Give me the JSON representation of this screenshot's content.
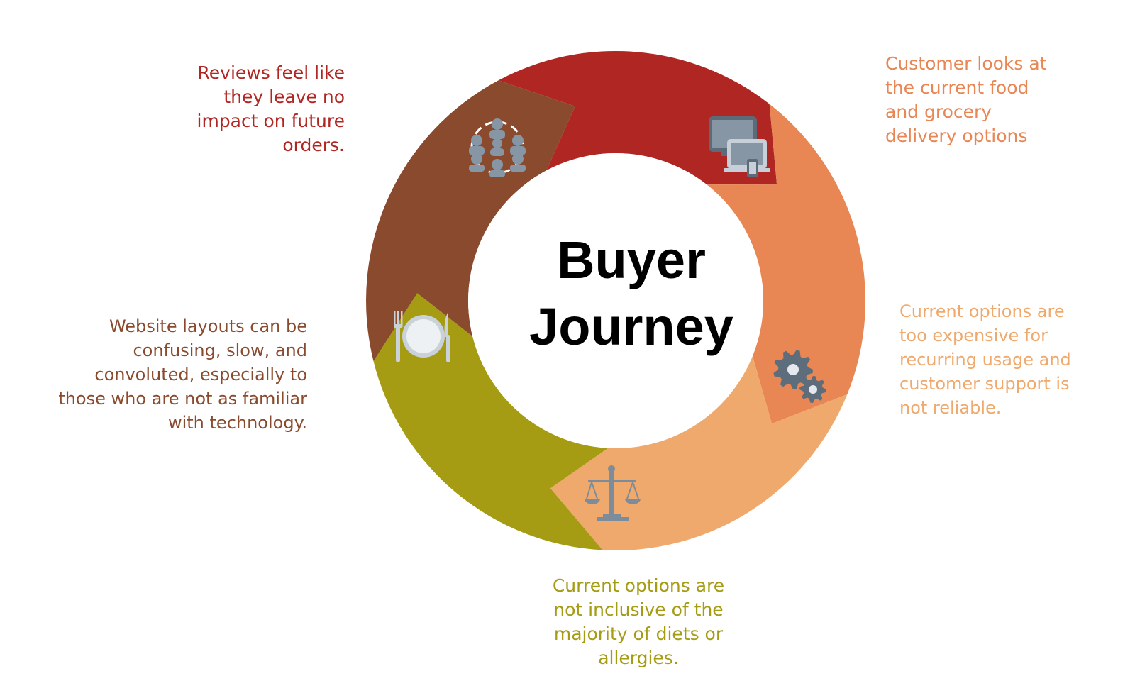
{
  "title": {
    "line1": "Buyer",
    "line2": "Journey"
  },
  "colors": {
    "red": "#b02622",
    "orange": "#e88654",
    "peach": "#f0a96c",
    "olive": "#a59c13",
    "brown": "#8a4a2e",
    "icon": "#7d8c9b"
  },
  "stages": [
    {
      "id": "reviews",
      "color": "#b02622",
      "icon": "people-network-icon",
      "lines": [
        "Reviews feel like",
        "they leave no",
        "impact on future",
        "orders."
      ]
    },
    {
      "id": "delivery-options",
      "color": "#e88654",
      "icon": "devices-icon",
      "lines": [
        "Customer looks at",
        "the current food",
        "and grocery",
        "delivery options"
      ]
    },
    {
      "id": "expensive",
      "color": "#f0a96c",
      "icon": "gears-icon",
      "lines": [
        "Current options are",
        "too expensive for",
        "recurring usage and",
        "customer support is",
        "not reliable."
      ]
    },
    {
      "id": "diets",
      "color": "#a59c13",
      "icon": "balance-scale-icon",
      "lines": [
        "Current options are",
        "not inclusive of the",
        "majority of diets or",
        "allergies."
      ]
    },
    {
      "id": "website",
      "color": "#8a4a2e",
      "icon": "plate-cutlery-icon",
      "lines": [
        "Website layouts can be",
        "confusing, slow, and",
        "convoluted, especially to",
        "those who are not as familiar",
        "with technology."
      ]
    }
  ]
}
